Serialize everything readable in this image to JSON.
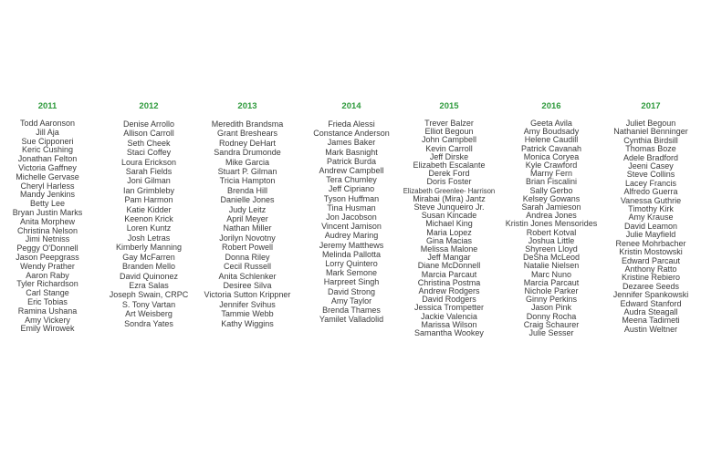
{
  "accent_color": "#2e9a3c",
  "columns": [
    {
      "year": "2011",
      "names": [
        "Todd Aaronson",
        "Jill Aja",
        "Sue Cipponeri",
        "Keric Cushing",
        "Jonathan Felton",
        "Victoria Gaffney",
        "Michelle Gervase",
        "Cheryl Harless",
        "Mandy Jenkins",
        "Betty Lee",
        "Bryan Justin Marks",
        "Anita Morphew",
        "Christina Nelson",
        "Jimi Netniss",
        "Peggy O'Donnell",
        "Jason Peepgrass",
        "Wendy Prather",
        "Aaron Raby",
        "Tyler Richardson",
        "Carl Stange",
        "Eric Tobias",
        "Ramina Ushana",
        "Amy Vickery",
        "Emily Wirowek"
      ]
    },
    {
      "year": "2012",
      "names": [
        "Denise Arrollo",
        "Allison Carroll",
        "Seth Cheek",
        "Staci Coffey",
        "Loura Erickson",
        "Sarah Fields",
        "Joni Gilman",
        "Ian Grimbleby",
        "Pam Harmon",
        "Katie Kidder",
        "Keenon Krick",
        "Loren Kuntz",
        "Josh Letras",
        "Kimberly Manning",
        "Gay McFarren",
        "Branden Mello",
        "David Quinonez",
        "Ezra Salas",
        "Joseph Swain, CRPC",
        "S. Tony Vartan",
        "Art Weisberg",
        "Sondra Yates"
      ]
    },
    {
      "year": "2013",
      "names": [
        "Meredith Brandsma",
        "Grant Breshears",
        "Rodney DeHart",
        "Sandra Drumonde",
        "Mike Garcia",
        "Stuart P. Gilman",
        "Tricia Hampton",
        "Brenda Hill",
        "Danielle Jones",
        "Judy Leitz",
        "April Meyer",
        "Nathan Miller",
        "Jorilyn Novotny",
        "Robert Powell",
        "Donna Riley",
        "Cecil Russell",
        "Anita Schlenker",
        "Desiree Silva",
        "Victoria Sutton Krippner",
        "Jennifer Svihus",
        "Tammie Webb",
        "Kathy Wiggins"
      ]
    },
    {
      "year": "2014",
      "names": [
        "Frieda Alessi",
        "Constance Anderson",
        "James Baker",
        "Mark Basnight",
        "Patrick Burda",
        "Andrew Campbell",
        "Tera Chumley",
        "Jeff Cipriano",
        "Tyson Huffman",
        "Tina Husman",
        "Jon Jacobson",
        "Vincent Jamison",
        "Audrey Maring",
        "Jeremy Matthews",
        "Melinda Pallotta",
        "Lorry Quintero",
        "Mark Semone",
        "Harpreet Singh",
        "David Strong",
        "Amy Taylor",
        "Brenda Thames",
        "Yamilet Valladolid"
      ]
    },
    {
      "year": "2015",
      "names": [
        "Trever Balzer",
        "Elliot Begoun",
        "John Campbell",
        "Kevin Carroll",
        "Jeff Dirske",
        "Elizabeth Escalante",
        "Derek Ford",
        "Doris Foster",
        "Elizabeth Greenlee- Harrison",
        "Mirabai (Mira) Jantz",
        "Steve Junqueiro Jr.",
        "Susan Kincade",
        "Michael King",
        "Maria Lopez",
        "Gina Macias",
        "Melissa Malone",
        "Jeff Mangar",
        "Diane McDonnell",
        "Marcia Parcaut",
        "Christina Postma",
        "Andrew Rodgers",
        "David Rodgers",
        "Jessica Trompetter",
        "Jackie Valencia",
        "Marissa Wilson",
        "Samantha Wookey"
      ]
    },
    {
      "year": "2016",
      "names": [
        "Geeta Avila",
        "Amy Boudsady",
        "Helene Caudill",
        "Patrick Cavanah",
        "Monica Coryea",
        "Kyle Crawford",
        "Marny Fern",
        "Brian Fiscalini",
        "Sally Gerbo",
        "Kelsey Gowans",
        "Sarah Jamieson",
        "Andrea Jones",
        "Kristin Jones Mensorides",
        "Robert Kotval",
        "Joshua Little",
        "Shyreen Lloyd",
        "DeSha McLeod",
        "Natalie Nielsen",
        "Marc Nuno",
        "Marcia Parcaut",
        "Nichole Parker",
        "Ginny Perkins",
        "Jason Pink",
        "Donny Rocha",
        "Craig Schaurer",
        "Julie Sesser"
      ]
    },
    {
      "year": "2017",
      "names": [
        "Juliet Begoun",
        "Nathaniel Benninger",
        "Cynthia Birdsill",
        "Thomas Boze",
        "Adele Bradford",
        "Jeeni Casey",
        "Steve Collins",
        "Lacey Francis",
        "Alfredo Guerra",
        "Vanessa Guthrie",
        "Timothy Kirk",
        "Amy Krause",
        "David Leamon",
        "Julie Mayfield",
        "Renee Mohrbacher",
        "Kristin Mostowski",
        "Edward Parcaut",
        "Anthony Ratto",
        "Kristine Rebiero",
        "Dezaree Seeds",
        "Jennifer Spankowski",
        "Edward Stanford",
        "Audra Steagall",
        "Meena Tadimeti",
        "Austin Weltner"
      ]
    }
  ]
}
